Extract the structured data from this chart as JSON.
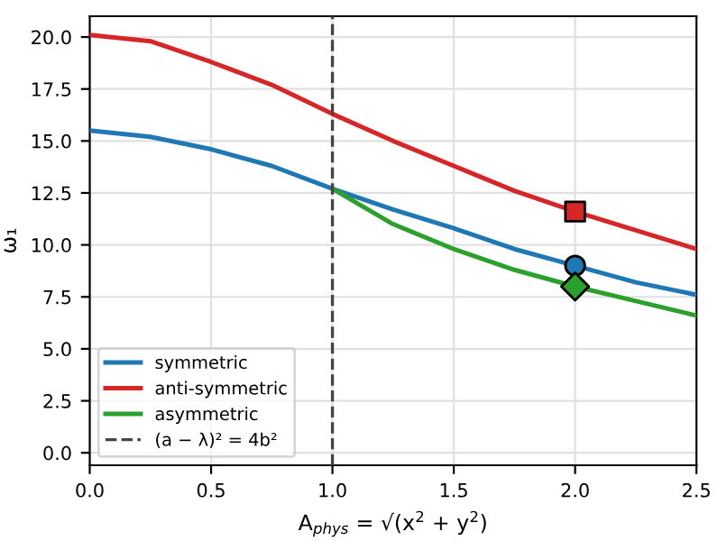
{
  "chart_data": {
    "type": "line",
    "xlabel": "A$_{phys}$ = √(x$^{2}$ + y$^{2}$)",
    "ylabel": "ω₁",
    "xlim": [
      0,
      2.5
    ],
    "ylim": [
      -0.6,
      21
    ],
    "xticks": [
      {
        "value": 0,
        "label": "0.0"
      },
      0.5,
      {
        "value": 1,
        "label": "1.0"
      },
      1.5,
      {
        "value": 2,
        "label": "2.0"
      },
      2.5
    ],
    "yticks": [
      {
        "value": 0,
        "label": "0.0"
      },
      2.5,
      {
        "value": 5,
        "label": "5.0"
      },
      7.5,
      {
        "value": 10,
        "label": "10.0"
      },
      12.5,
      {
        "value": 15,
        "label": "15.0"
      },
      17.5,
      {
        "value": 20,
        "label": "20.0"
      }
    ],
    "grid": true,
    "legend": "bottom left",
    "marker": "none",
    "line_style": "solid",
    "series": [
      {
        "name": "symmetric",
        "color": "#1f77b4",
        "x": [
          0,
          0.25,
          0.5,
          0.75,
          1,
          1.25,
          1.5,
          1.75,
          2,
          2.25,
          2.5
        ],
        "values": [
          15.5,
          15.2,
          14.6,
          13.8,
          12.7,
          11.7,
          10.8,
          9.8,
          9.0,
          8.2,
          7.6
        ]
      },
      {
        "name": "anti-symmetric",
        "color": "#d62728",
        "x": [
          0,
          0.25,
          0.5,
          0.75,
          1,
          1.25,
          1.5,
          1.75,
          2,
          2.25,
          2.5
        ],
        "values": [
          20.1,
          19.8,
          18.8,
          17.7,
          16.3,
          15.0,
          13.8,
          12.6,
          11.6,
          10.7,
          9.8
        ]
      },
      {
        "name": "asymmetric",
        "color": "#2ca02c",
        "x": [
          1,
          1.25,
          1.5,
          1.75,
          2,
          2.25,
          2.5
        ],
        "values": [
          12.7,
          11.0,
          9.8,
          8.8,
          8.0,
          7.3,
          6.6
        ]
      },
      {
        "name": "(a − λ)² = 4b²",
        "color": "#444444",
        "line_style": "dashed",
        "x": [
          1,
          1
        ],
        "values": [
          -0.6,
          21
        ]
      },
      {
        "type": "scatter",
        "marker": "square",
        "color": "#d62728",
        "x": [
          2
        ],
        "values": [
          11.6
        ]
      },
      {
        "type": "scatter",
        "marker": "circle",
        "color": "#1f77b4",
        "x": [
          2
        ],
        "values": [
          9.0
        ]
      },
      {
        "type": "scatter",
        "marker": "diamond",
        "color": "#2ca02c",
        "x": [
          2
        ],
        "values": [
          8.0
        ]
      }
    ]
  }
}
